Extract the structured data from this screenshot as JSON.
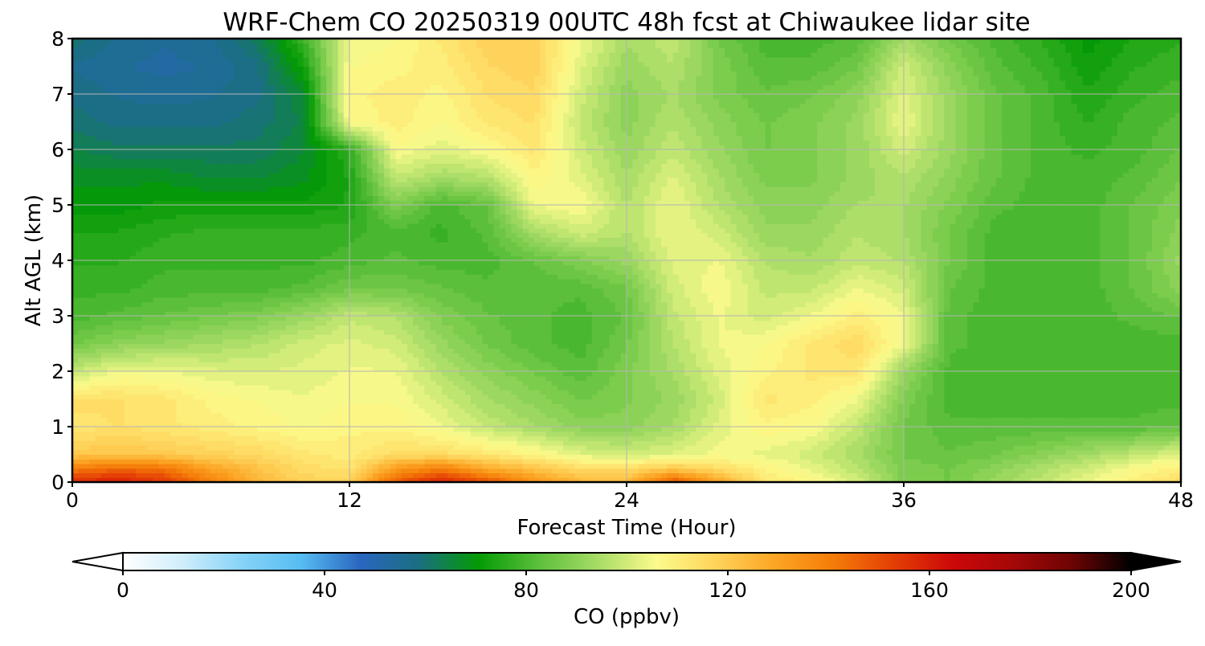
{
  "chart_data": {
    "type": "heatmap",
    "title": "WRF-Chem CO  20250319 00UTC 48h fcst at Chiwaukee lidar site",
    "xlabel": "Forecast Time (Hour)",
    "ylabel": "Alt AGL (km)",
    "xlim": [
      0,
      48
    ],
    "ylim": [
      0,
      8
    ],
    "x_ticks": [
      "0",
      "12",
      "24",
      "36",
      "48"
    ],
    "y_ticks": [
      "0",
      "1",
      "2",
      "3",
      "4",
      "5",
      "6",
      "7",
      "8"
    ],
    "grid": true,
    "units": "ppbv",
    "x_hours": [
      0,
      2,
      4,
      6,
      8,
      10,
      12,
      14,
      16,
      18,
      20,
      22,
      24,
      26,
      28,
      30,
      32,
      34,
      36,
      38,
      40,
      42,
      44,
      46,
      48
    ],
    "y_km": [
      0,
      0.25,
      0.5,
      1,
      1.5,
      2,
      2.5,
      3,
      3.5,
      4,
      4.5,
      5,
      5.5,
      6,
      6.5,
      7,
      7.5,
      8
    ],
    "values": [
      [
        158,
        160,
        155,
        140,
        125,
        118,
        118,
        148,
        160,
        150,
        135,
        125,
        125,
        150,
        130,
        112,
        108,
        100,
        88,
        86,
        92,
        98,
        104,
        110,
        115
      ],
      [
        140,
        145,
        142,
        130,
        122,
        115,
        113,
        132,
        140,
        128,
        122,
        115,
        115,
        120,
        115,
        108,
        103,
        97,
        88,
        86,
        90,
        95,
        100,
        106,
        110
      ],
      [
        120,
        122,
        120,
        118,
        116,
        112,
        110,
        115,
        115,
        112,
        108,
        102,
        100,
        102,
        105,
        103,
        100,
        94,
        86,
        84,
        86,
        90,
        94,
        98,
        102
      ],
      [
        112,
        114,
        112,
        110,
        108,
        106,
        108,
        108,
        104,
        98,
        94,
        90,
        90,
        94,
        102,
        108,
        106,
        98,
        86,
        82,
        82,
        82,
        82,
        82,
        84
      ],
      [
        115,
        114,
        112,
        108,
        106,
        104,
        106,
        106,
        100,
        94,
        90,
        86,
        88,
        92,
        100,
        112,
        110,
        104,
        88,
        80,
        80,
        80,
        80,
        80,
        80
      ],
      [
        98,
        104,
        104,
        102,
        101,
        102,
        104,
        104,
        96,
        90,
        86,
        82,
        88,
        94,
        102,
        108,
        112,
        112,
        92,
        80,
        80,
        80,
        80,
        80,
        80
      ],
      [
        86,
        90,
        92,
        94,
        96,
        100,
        102,
        100,
        92,
        86,
        82,
        80,
        86,
        96,
        104,
        106,
        112,
        116,
        104,
        82,
        80,
        80,
        80,
        80,
        80
      ],
      [
        80,
        82,
        84,
        86,
        88,
        92,
        98,
        96,
        88,
        84,
        82,
        80,
        84,
        98,
        104,
        100,
        104,
        110,
        104,
        82,
        80,
        80,
        80,
        82,
        84
      ],
      [
        78,
        78,
        80,
        80,
        80,
        82,
        86,
        86,
        84,
        82,
        82,
        82,
        86,
        100,
        106,
        98,
        98,
        104,
        100,
        84,
        80,
        80,
        80,
        84,
        90
      ],
      [
        76,
        76,
        78,
        78,
        78,
        78,
        80,
        82,
        80,
        80,
        84,
        88,
        92,
        102,
        104,
        96,
        94,
        98,
        96,
        86,
        80,
        80,
        80,
        84,
        92
      ],
      [
        74,
        74,
        76,
        77,
        77,
        77,
        78,
        80,
        78,
        82,
        94,
        100,
        96,
        104,
        100,
        92,
        92,
        96,
        94,
        86,
        80,
        80,
        80,
        84,
        90
      ],
      [
        70,
        70,
        72,
        72,
        72,
        72,
        74,
        88,
        80,
        84,
        104,
        106,
        96,
        104,
        96,
        90,
        90,
        94,
        94,
        88,
        82,
        80,
        80,
        84,
        88
      ],
      [
        68,
        68,
        68,
        66,
        66,
        68,
        74,
        98,
        94,
        96,
        108,
        102,
        94,
        102,
        94,
        88,
        88,
        92,
        96,
        90,
        84,
        80,
        80,
        82,
        86
      ],
      [
        64,
        62,
        62,
        62,
        62,
        66,
        76,
        106,
        102,
        106,
        112,
        100,
        92,
        98,
        92,
        86,
        88,
        92,
        100,
        92,
        84,
        80,
        78,
        80,
        84
      ],
      [
        60,
        58,
        58,
        58,
        60,
        64,
        106,
        110,
        106,
        112,
        114,
        98,
        90,
        96,
        90,
        86,
        88,
        92,
        104,
        92,
        84,
        80,
        76,
        80,
        82
      ],
      [
        58,
        56,
        55,
        56,
        58,
        66,
        108,
        110,
        108,
        114,
        116,
        100,
        90,
        94,
        88,
        84,
        86,
        90,
        102,
        92,
        84,
        80,
        74,
        78,
        80
      ],
      [
        56,
        54,
        53,
        54,
        58,
        72,
        106,
        108,
        110,
        116,
        118,
        102,
        92,
        96,
        88,
        82,
        82,
        86,
        100,
        90,
        82,
        78,
        72,
        76,
        78
      ],
      [
        60,
        56,
        54,
        56,
        62,
        78,
        104,
        106,
        112,
        118,
        118,
        104,
        94,
        98,
        86,
        80,
        80,
        82,
        94,
        86,
        80,
        76,
        70,
        74,
        76
      ]
    ],
    "colorbar": {
      "label": "CO  (ppbv)",
      "min": 0,
      "max": 200,
      "step": 2.5,
      "extend": "both",
      "ticks": [
        "0",
        "40",
        "80",
        "120",
        "160",
        "200"
      ],
      "colors": [
        "#ffffff",
        "#cfeefb",
        "#86d3f7",
        "#56bdf2",
        "#2a66c0",
        "#1a6f80",
        "#049b04",
        "#5bbf3a",
        "#a6dc66",
        "#fcfb8c",
        "#fed35a",
        "#fca524",
        "#f47b08",
        "#e43e06",
        "#cc0808",
        "#a50808",
        "#6e0404",
        "#000000"
      ]
    }
  }
}
